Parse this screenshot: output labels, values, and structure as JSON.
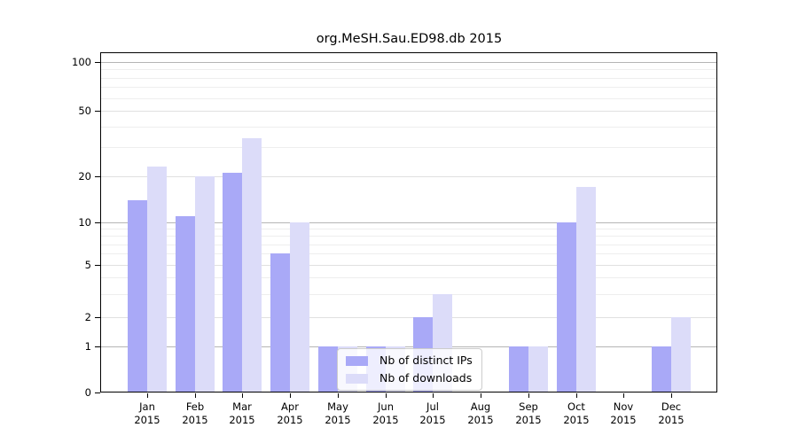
{
  "title": "org.MeSH.Sau.ED98.db 2015",
  "chart_data": {
    "type": "bar",
    "title": "org.MeSH.Sau.ED98.db 2015",
    "categories": [
      "Jan 2015",
      "Feb 2015",
      "Mar 2015",
      "Apr 2015",
      "May 2015",
      "Jun 2015",
      "Jul 2015",
      "Aug 2015",
      "Sep 2015",
      "Oct 2015",
      "Nov 2015",
      "Dec 2015"
    ],
    "series": [
      {
        "name": "Nb of distinct IPs",
        "color": "#a9a9f7",
        "values": [
          14,
          11,
          21,
          6,
          1,
          1,
          2,
          0,
          1,
          10,
          0,
          1
        ]
      },
      {
        "name": "Nb of downloads",
        "color": "#dcdcf9",
        "values": [
          23,
          20,
          34,
          10,
          1,
          1,
          3,
          0,
          1,
          17,
          0,
          2
        ]
      }
    ],
    "xlabel": "",
    "ylabel": "",
    "yscale": "log-like (0,1,2,5,10,20,50,100)",
    "ylim": [
      0,
      100
    ],
    "yticks": [
      100,
      50,
      20,
      10,
      5,
      2,
      1,
      0
    ],
    "minor_gridlines": [
      90,
      80,
      70,
      60,
      40,
      30,
      9,
      8,
      7,
      6,
      4,
      3
    ],
    "emphasized_gridlines": [
      100,
      10,
      1
    ],
    "grid": true,
    "legend_position": "bottom-center"
  },
  "colors": {
    "grid_major_emphasis": "#b5b5b5",
    "grid_major": "#e0e0e0",
    "grid_minor": "#eeeeee",
    "axis": "#000000"
  }
}
